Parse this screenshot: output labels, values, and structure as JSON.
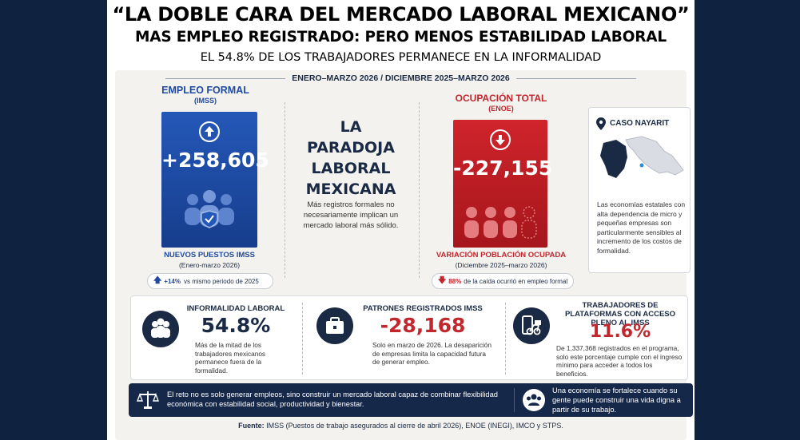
{
  "header": {
    "title": "“LA DOBLE CARA DEL MERCADO LABORAL MEXICANO”",
    "subtitle": "MAS EMPLEO REGISTRADO: PERO MENOS ESTABILIDAD LABORAL",
    "tagline": "EL 54.8% DE LOS TRABAJADORES PERMANECE EN LA INFORMALIDAD"
  },
  "period": "ENERO–MARZO 2026 / DICIEMBRE 2025–MARZO 2026",
  "formal": {
    "title": "EMPLEO FORMAL",
    "source": "(IMSS)",
    "value": "+258,605",
    "label": "NUEVOS PUESTOS IMSS",
    "range": "(Enero-marzo 2026)",
    "delta": "+14%",
    "delta_note": "vs mismo periodo de 2025",
    "color": "#1f4aa0"
  },
  "paradox": {
    "title_lines": [
      "LA PARADOJA",
      "LABORAL",
      "MEXICANA"
    ],
    "text": "Más registros formales no necesariamente implican un mercado laboral más sólido."
  },
  "total": {
    "title": "OCUPACIÓN TOTAL",
    "source": "(ENOE)",
    "value": "-227,155",
    "label": "VARIACIÓN POBLACIÓN OCUPADA",
    "range": "(Diciembre 2025–marzo 2026)",
    "delta": "88%",
    "delta_note": "de la caída ocurrió en empleo formal",
    "color": "#c1272d"
  },
  "nayarit": {
    "title": "CASO NAYARIT",
    "text": "Las economías estatales con alta dependencia de micro y pequeñas empresas son particularmente sensibles al incremento de los costos de formalidad.",
    "icon": "map-pin-icon"
  },
  "stats": [
    {
      "title": "INFORMALIDAD LABORAL",
      "value": "54.8%",
      "desc": "Más de la mitad de los trabajadores mexicanos permanece fuera de la formalidad.",
      "icon": "people-group-icon",
      "color": "#1b2a44"
    },
    {
      "title": "PATRONES REGISTRADOS IMSS",
      "value": "-28,168",
      "desc": "Solo en marzo de 2026. La desaparición de empresas limita la capacidad futura de generar empleo.",
      "icon": "briefcase-icon",
      "color": "#c1272d"
    },
    {
      "title": "TRABAJADORES DE PLATAFORMAS CON ACCESO PLENO AL IMSS",
      "value": "11.6%",
      "desc": "De 1,337,368 registrados en el programa, solo este porcentaje cumple con el ingreso mínimo para acceder a todos los beneficios.",
      "icon": "delivery-phone-icon",
      "color": "#c1272d"
    }
  ],
  "banner": {
    "left": "El reto no es solo generar empleos, sino construir un mercado laboral capaz de combinar flexibilidad económica con estabilidad social, productividad y bienestar.",
    "right": "Una economía se fortalece cuando su gente puede construir una vida digna a partir de su trabajo."
  },
  "source": {
    "label": "Fuente:",
    "text": "IMSS (Puestos de trabajo asegurados al cierre de abril 2026), ENOE (INEGI), IMCO y STPS."
  },
  "chart_data": {
    "type": "table",
    "title": "“LA DOBLE CARA DEL MERCADO LABORAL MEXICANO”",
    "metrics": [
      {
        "label": "NUEVOS PUESTOS IMSS",
        "value": 258605
      },
      {
        "label": "VARIACIÓN POBLACIÓN OCUPADA",
        "value": -227155
      },
      {
        "label": "INFORMALIDAD LABORAL",
        "value": 54.8,
        "unit": "%"
      },
      {
        "label": "PATRONES REGISTRADOS IMSS",
        "value": -28168
      },
      {
        "label": "TRABAJADORES DE PLATAFORMAS CON ACCESO PLENO AL IMSS",
        "value": 11.6,
        "unit": "%"
      }
    ]
  }
}
